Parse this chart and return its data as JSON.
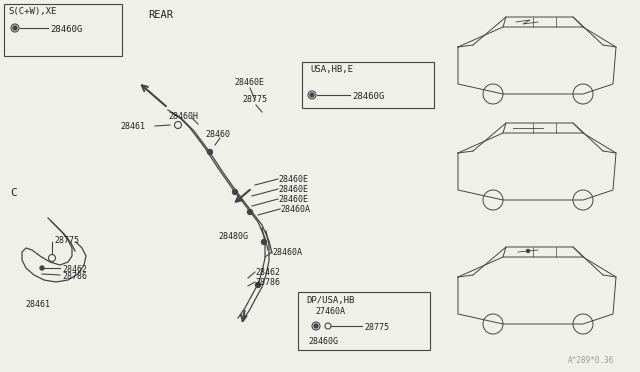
{
  "bg_color": "#f0f0eb",
  "line_color": "#444444",
  "text_color": "#222222",
  "watermark": "A^289*0.36",
  "top_left_label": "S(C+W),XE",
  "top_left_part": "28460G",
  "rear_label": "REAR",
  "usa_hbe_label": "USA,HB,E",
  "usa_hbe_part": "28460G",
  "dp_usa_hb_label": "DP/USA,HB",
  "dp_usa_hb_parts": [
    "27460A",
    "28775",
    "28460G"
  ],
  "c_label": "C"
}
